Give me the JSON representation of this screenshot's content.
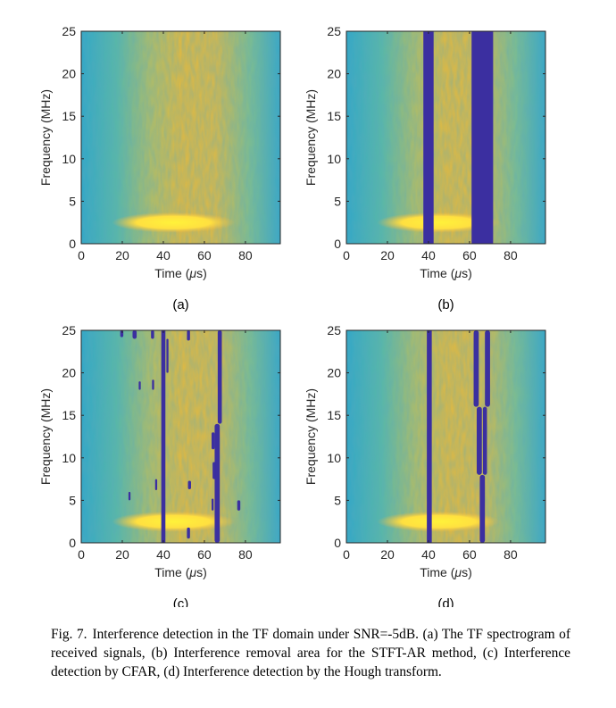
{
  "chart_data": [
    {
      "type": "heatmap",
      "panel_label": "(a)",
      "xlabel": "Time (μs)",
      "ylabel": "Frequency (MHz)",
      "xlim": [
        0,
        97
      ],
      "ylim": [
        0,
        25
      ],
      "xticks": [
        0,
        20,
        40,
        60,
        80
      ],
      "yticks": [
        0,
        5,
        10,
        15,
        20,
        25
      ],
      "signal_band": {
        "freq_center": 2.5,
        "freq_halfwidth": 0.9,
        "time_start": 15,
        "time_end": 75
      },
      "removed_regions": []
    },
    {
      "type": "heatmap",
      "panel_label": "(b)",
      "xlabel": "Time (μs)",
      "ylabel": "Frequency (MHz)",
      "xlim": [
        0,
        97
      ],
      "ylim": [
        0,
        25
      ],
      "xticks": [
        0,
        20,
        40,
        60,
        80
      ],
      "yticks": [
        0,
        5,
        10,
        15,
        20,
        25
      ],
      "signal_band": {
        "freq_center": 2.5,
        "freq_halfwidth": 0.9,
        "time_start": 15,
        "time_end": 75
      },
      "removed_regions": [
        {
          "t0": 37.5,
          "t1": 42.5,
          "f0": 0,
          "f1": 25
        },
        {
          "t0": 61,
          "t1": 71.5,
          "f0": 0,
          "f1": 25
        }
      ]
    },
    {
      "type": "heatmap",
      "panel_label": "(c)",
      "xlabel": "Time (μs)",
      "ylabel": "Frequency (MHz)",
      "xlim": [
        0,
        97
      ],
      "ylim": [
        0,
        25
      ],
      "xticks": [
        0,
        20,
        40,
        60,
        80
      ],
      "yticks": [
        0,
        5,
        10,
        15,
        20,
        25
      ],
      "signal_band": {
        "freq_center": 2.5,
        "freq_halfwidth": 0.9,
        "time_start": 15,
        "time_end": 75
      },
      "removed_regions": [
        {
          "t0": 39,
          "t1": 41,
          "f0": 0,
          "f1": 25
        },
        {
          "t0": 65,
          "t1": 67.5,
          "f0": 0,
          "f1": 14
        },
        {
          "t0": 66.5,
          "t1": 68.5,
          "f0": 14,
          "f1": 25
        },
        {
          "t0": 41.5,
          "t1": 42.5,
          "f0": 20,
          "f1": 24
        },
        {
          "t0": 25,
          "t1": 27,
          "f0": 24,
          "f1": 25
        },
        {
          "t0": 19,
          "t1": 20.5,
          "f0": 24.2,
          "f1": 25
        },
        {
          "t0": 34,
          "t1": 35.5,
          "f0": 24,
          "f1": 25
        },
        {
          "t0": 51.5,
          "t1": 53,
          "f0": 23.8,
          "f1": 25
        },
        {
          "t0": 28,
          "t1": 29,
          "f0": 18,
          "f1": 19
        },
        {
          "t0": 34.5,
          "t1": 35.5,
          "f0": 18,
          "f1": 19.2
        },
        {
          "t0": 23,
          "t1": 24,
          "f0": 5,
          "f1": 6
        },
        {
          "t0": 36,
          "t1": 37,
          "f0": 6.2,
          "f1": 7.5
        },
        {
          "t0": 52,
          "t1": 53.5,
          "f0": 6.3,
          "f1": 7.3
        },
        {
          "t0": 51.5,
          "t1": 53,
          "f0": 0.5,
          "f1": 1.8
        },
        {
          "t0": 76,
          "t1": 77.5,
          "f0": 3.8,
          "f1": 5
        },
        {
          "t0": 63.5,
          "t1": 65,
          "f0": 11,
          "f1": 13
        },
        {
          "t0": 64,
          "t1": 65.5,
          "f0": 7.5,
          "f1": 9.5
        },
        {
          "t0": 63.5,
          "t1": 64.5,
          "f0": 3.8,
          "f1": 5.2
        }
      ]
    },
    {
      "type": "heatmap",
      "panel_label": "(d)",
      "xlabel": "Time (μs)",
      "ylabel": "Frequency (MHz)",
      "xlim": [
        0,
        97
      ],
      "ylim": [
        0,
        25
      ],
      "xticks": [
        0,
        20,
        40,
        60,
        80
      ],
      "yticks": [
        0,
        5,
        10,
        15,
        20,
        25
      ],
      "signal_band": {
        "freq_center": 2.5,
        "freq_halfwidth": 0.9,
        "time_start": 15,
        "time_end": 75
      },
      "removed_regions": [
        {
          "t0": 39.2,
          "t1": 41.6,
          "f0": 0,
          "f1": 25
        },
        {
          "t0": 65,
          "t1": 67.5,
          "f0": 0,
          "f1": 8
        },
        {
          "t0": 63.5,
          "t1": 66,
          "f0": 8,
          "f1": 16
        },
        {
          "t0": 66.5,
          "t1": 68.5,
          "f0": 8,
          "f1": 16
        },
        {
          "t0": 62,
          "t1": 64.5,
          "f0": 16,
          "f1": 25
        },
        {
          "t0": 67.5,
          "t1": 70,
          "f0": 16,
          "f1": 25
        }
      ]
    }
  ],
  "caption": {
    "label": "Fig. 7.",
    "text": "Interference detection in the TF domain under SNR=-5dB. (a) The TF spectrogram of received signals, (b) Interference removal area for the STFT-AR method, (c) Interference detection by CFAR, (d) Interference detection by the Hough transform."
  },
  "colors": {
    "background_low": "#2fa7c8",
    "background_high": "#e8b83a",
    "signal": "#fff23a",
    "removed": "#3b2fa0"
  }
}
